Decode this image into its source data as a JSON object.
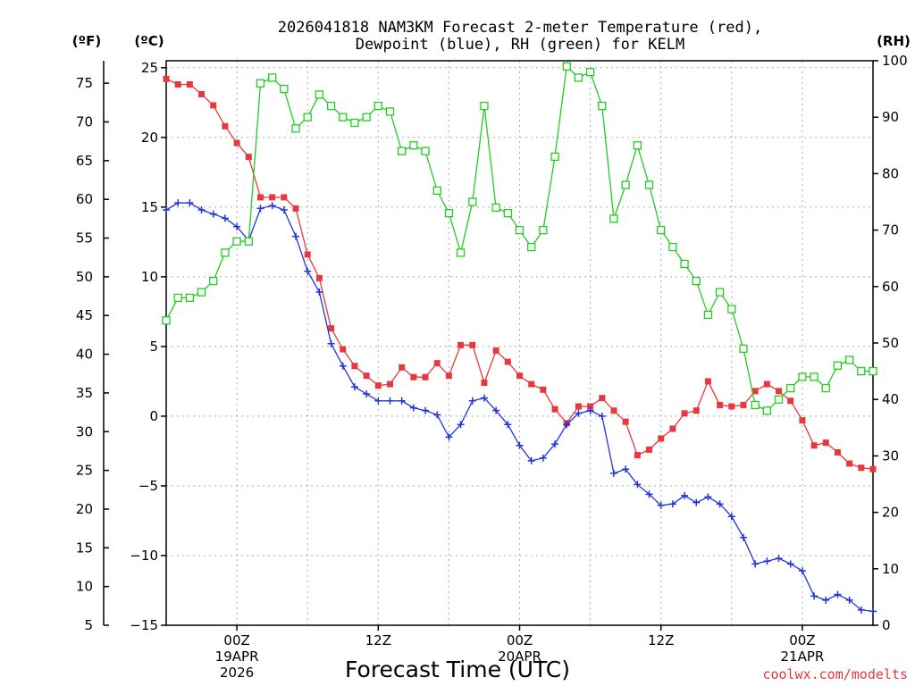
{
  "chart_data": {
    "type": "line",
    "title_line1": "2026041818 NAM3KM Forecast 2-meter Temperature (red),",
    "title_line2": "Dewpoint (blue), RH (green) for KELM",
    "xlabel": "Forecast Time (UTC)",
    "credit": "coolwx.com/modelts",
    "unit_f": "(ºF)",
    "unit_c": "(ºC)",
    "unit_rh": "(RH)",
    "x_hours": [
      0,
      1,
      2,
      3,
      4,
      5,
      6,
      7,
      8,
      9,
      10,
      11,
      12,
      13,
      14,
      15,
      16,
      17,
      18,
      19,
      20,
      21,
      22,
      23,
      24,
      25,
      26,
      27,
      28,
      29,
      30,
      31,
      32,
      33,
      34,
      35,
      36,
      37,
      38,
      39,
      40,
      41,
      42,
      43,
      44,
      45,
      46,
      47,
      48,
      49,
      50,
      51,
      52,
      53,
      54,
      55,
      56,
      57,
      58,
      59,
      60
    ],
    "xlim": [
      0,
      60
    ],
    "x_ticks": [
      {
        "hour": 6,
        "label1": "00Z",
        "label2": "19APR",
        "label3": "2026"
      },
      {
        "hour": 18,
        "label1": "12Z",
        "label2": "",
        "label3": ""
      },
      {
        "hour": 30,
        "label1": "00Z",
        "label2": "20APR",
        "label3": ""
      },
      {
        "hour": 42,
        "label1": "12Z",
        "label2": "",
        "label3": ""
      },
      {
        "hour": 54,
        "label1": "00Z",
        "label2": "21APR",
        "label3": ""
      }
    ],
    "grid_x_hours": [
      6,
      12,
      18,
      24,
      30,
      36,
      42,
      48,
      54
    ],
    "ylim_c": [
      -15,
      25.5
    ],
    "yticks_c": [
      -15,
      -10,
      -5,
      0,
      5,
      10,
      15,
      20,
      25
    ],
    "ytick_labels_c": [
      "−15",
      "−10",
      "−5",
      "0",
      "5",
      "10",
      "15",
      "20",
      "25"
    ],
    "yticks_f": [
      "5",
      "10",
      "15",
      "20",
      "25",
      "30",
      "35",
      "40",
      "45",
      "50",
      "55",
      "60",
      "65",
      "70",
      "75"
    ],
    "yticks_f_values": [
      5,
      10,
      15,
      20,
      25,
      30,
      35,
      40,
      45,
      50,
      55,
      60,
      65,
      70,
      75
    ],
    "ylim_rh": [
      0,
      100
    ],
    "yticks_rh": [
      "0",
      "10",
      "20",
      "30",
      "40",
      "50",
      "60",
      "70",
      "80",
      "90",
      "100"
    ],
    "yticks_rh_values": [
      0,
      10,
      20,
      30,
      40,
      50,
      60,
      70,
      80,
      90,
      100
    ],
    "series": [
      {
        "name": "2-meter Temperature",
        "axis": "c",
        "color": "#e8383d",
        "marker": "filled-square",
        "values": [
          24.2,
          23.8,
          23.8,
          23.1,
          22.3,
          20.8,
          19.6,
          18.6,
          15.7,
          15.7,
          15.7,
          14.9,
          11.6,
          9.9,
          6.3,
          4.8,
          3.6,
          2.9,
          2.2,
          2.3,
          3.5,
          2.8,
          2.8,
          3.8,
          2.9,
          5.1,
          5.1,
          2.4,
          4.7,
          3.9,
          2.9,
          2.3,
          1.9,
          0.5,
          -0.5,
          0.7,
          0.7,
          1.3,
          0.4,
          -0.4,
          -2.8,
          -2.4,
          -1.6,
          -0.9,
          0.2,
          0.4,
          2.5,
          0.8,
          0.7,
          0.8,
          1.8,
          2.3,
          1.8,
          1.1,
          -0.3,
          -2.1,
          -1.9,
          -2.6,
          -3.4,
          -3.7,
          -3.8
        ]
      },
      {
        "name": "Dewpoint",
        "axis": "c",
        "color": "#2233dd",
        "marker": "plus",
        "values": [
          14.8,
          15.3,
          15.3,
          14.8,
          14.5,
          14.2,
          13.6,
          12.6,
          14.9,
          15.1,
          14.8,
          12.9,
          10.4,
          8.9,
          5.2,
          3.6,
          2.1,
          1.6,
          1.1,
          1.1,
          1.1,
          0.6,
          0.4,
          0.1,
          -1.5,
          -0.6,
          1.1,
          1.3,
          0.4,
          -0.6,
          -2.1,
          -3.2,
          -3.0,
          -2.0,
          -0.6,
          0.2,
          0.4,
          0.0,
          -4.1,
          -3.8,
          -4.9,
          -5.6,
          -6.4,
          -6.3,
          -5.7,
          -6.2,
          -5.8,
          -6.3,
          -7.2,
          -8.7,
          -10.6,
          -10.4,
          -10.2,
          -10.6,
          -11.1,
          -12.9,
          -13.2,
          -12.8,
          -13.2,
          -13.9,
          -14.0
        ]
      },
      {
        "name": "RH",
        "axis": "rh",
        "color": "#22cc22",
        "marker": "open-square",
        "values": [
          54,
          58,
          58,
          59,
          61,
          66,
          68,
          68,
          96,
          97,
          95,
          88,
          90,
          94,
          92,
          90,
          89,
          90,
          92,
          91,
          84,
          85,
          84,
          77,
          73,
          66,
          75,
          92,
          74,
          73,
          70,
          67,
          70,
          83,
          99,
          97,
          98,
          92,
          72,
          78,
          85,
          78,
          70,
          67,
          64,
          61,
          55,
          59,
          56,
          49,
          39,
          38,
          40,
          42,
          44,
          44,
          42,
          46,
          47,
          45,
          45
        ]
      }
    ]
  }
}
